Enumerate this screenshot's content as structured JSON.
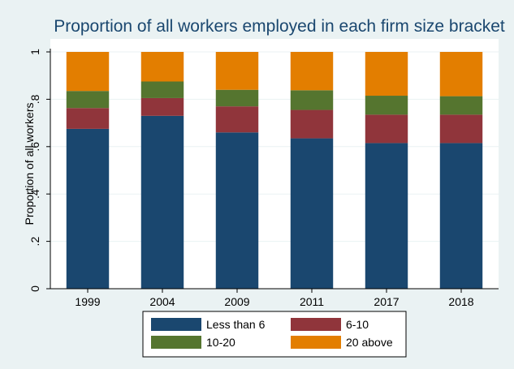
{
  "chart_data": {
    "type": "bar",
    "stacked": true,
    "title": "Proportion of all workers employed in each firm size bracket",
    "xlabel": "",
    "ylabel": "Proportion of all workers",
    "categories": [
      "1999",
      "2004",
      "2009",
      "2011",
      "2017",
      "2018"
    ],
    "ylim": [
      0,
      1
    ],
    "yticks": [
      0,
      0.2,
      0.4,
      0.6,
      0.8,
      1
    ],
    "ytick_labels": [
      "0",
      ".2",
      ".4",
      ".6",
      ".8",
      "1"
    ],
    "grid": true,
    "legend_position": "bottom",
    "series": [
      {
        "name": "Less than 6",
        "color": "#1a476f",
        "values": [
          0.675,
          0.73,
          0.66,
          0.635,
          0.615,
          0.615
        ]
      },
      {
        "name": "6-10",
        "color": "#90353b",
        "values": [
          0.088,
          0.075,
          0.11,
          0.12,
          0.12,
          0.12
        ]
      },
      {
        "name": "10-20",
        "color": "#55752f",
        "values": [
          0.072,
          0.07,
          0.07,
          0.083,
          0.08,
          0.078
        ]
      },
      {
        "name": "20 above",
        "color": "#e37e00",
        "values": [
          0.165,
          0.125,
          0.16,
          0.162,
          0.185,
          0.187
        ]
      }
    ]
  }
}
